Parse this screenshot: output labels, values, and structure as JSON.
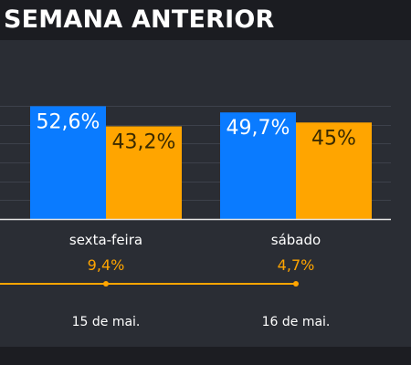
{
  "header": {
    "title": "SEMANA ANTERIOR"
  },
  "colors": {
    "series_1": "#0a7bff",
    "series_2": "#ffa500",
    "background": "#2a2d34",
    "text": "#ffffff"
  },
  "chart_data": {
    "type": "bar",
    "title": "",
    "categories": [
      "sexta-feira",
      "sábado"
    ],
    "series": [
      {
        "values": [
          52.6,
          49.7
        ],
        "labels": [
          "52,6%",
          "49,7%"
        ]
      },
      {
        "values": [
          43.2,
          45.0
        ],
        "labels": [
          "43,2%",
          "45%"
        ]
      }
    ],
    "differences": {
      "values": [
        9.4,
        4.7
      ],
      "labels": [
        "9,4%",
        "4,7%"
      ]
    },
    "dates": [
      "15 de mai.",
      "16 de mai."
    ],
    "grid": true,
    "ylim": [
      0,
      60
    ]
  }
}
